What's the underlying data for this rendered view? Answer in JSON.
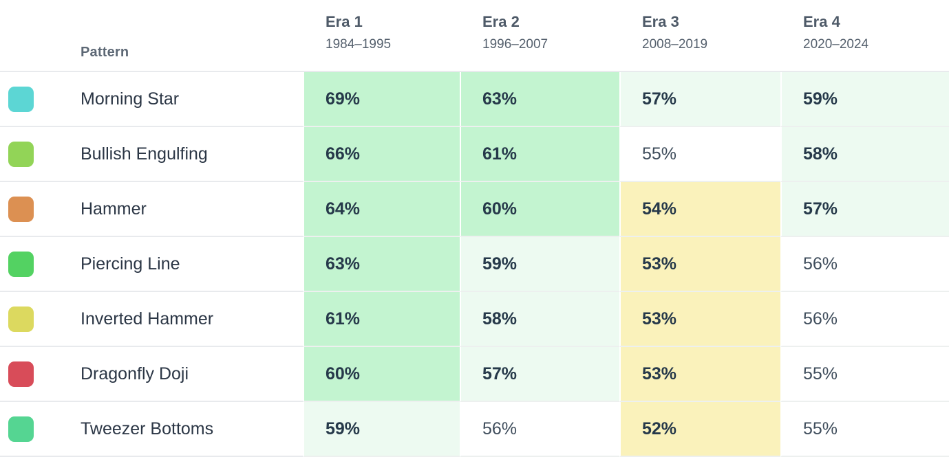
{
  "table": {
    "pattern_header": "Pattern",
    "columns": [
      {
        "era": "Era 1",
        "range": "1984–1995"
      },
      {
        "era": "Era 2",
        "range": "1996–2007"
      },
      {
        "era": "Era 3",
        "range": "2008–2019"
      },
      {
        "era": "Era 4",
        "range": "2020–2024"
      }
    ],
    "rows": [
      {
        "pattern": "Morning Star",
        "swatch_color": "#5cd6d4",
        "cells": [
          {
            "value": "69%",
            "bg": "green",
            "bold": true
          },
          {
            "value": "63%",
            "bg": "green",
            "bold": true
          },
          {
            "value": "57%",
            "bg": "pale",
            "bold": true
          },
          {
            "value": "59%",
            "bg": "pale",
            "bold": true
          }
        ]
      },
      {
        "pattern": "Bullish Engulfing",
        "swatch_color": "#92d457",
        "cells": [
          {
            "value": "66%",
            "bg": "green",
            "bold": true
          },
          {
            "value": "61%",
            "bg": "green",
            "bold": true
          },
          {
            "value": "55%",
            "bg": "white",
            "bold": false
          },
          {
            "value": "58%",
            "bg": "pale",
            "bold": true
          }
        ]
      },
      {
        "pattern": "Hammer",
        "swatch_color": "#dc9052",
        "cells": [
          {
            "value": "64%",
            "bg": "green",
            "bold": true
          },
          {
            "value": "60%",
            "bg": "green",
            "bold": true
          },
          {
            "value": "54%",
            "bg": "yellow",
            "bold": true
          },
          {
            "value": "57%",
            "bg": "pale",
            "bold": true
          }
        ]
      },
      {
        "pattern": "Piercing Line",
        "swatch_color": "#53d262",
        "cells": [
          {
            "value": "63%",
            "bg": "green",
            "bold": true
          },
          {
            "value": "59%",
            "bg": "pale",
            "bold": true
          },
          {
            "value": "53%",
            "bg": "yellow",
            "bold": true
          },
          {
            "value": "56%",
            "bg": "white",
            "bold": false
          }
        ]
      },
      {
        "pattern": "Inverted Hammer",
        "swatch_color": "#dcd95f",
        "cells": [
          {
            "value": "61%",
            "bg": "green",
            "bold": true
          },
          {
            "value": "58%",
            "bg": "pale",
            "bold": true
          },
          {
            "value": "53%",
            "bg": "yellow",
            "bold": true
          },
          {
            "value": "56%",
            "bg": "white",
            "bold": false
          }
        ]
      },
      {
        "pattern": "Dragonfly Doji",
        "swatch_color": "#d84c59",
        "cells": [
          {
            "value": "60%",
            "bg": "green",
            "bold": true
          },
          {
            "value": "57%",
            "bg": "pale",
            "bold": true
          },
          {
            "value": "53%",
            "bg": "yellow",
            "bold": true
          },
          {
            "value": "55%",
            "bg": "white",
            "bold": false
          }
        ]
      },
      {
        "pattern": "Tweezer Bottoms",
        "swatch_color": "#55d592",
        "cells": [
          {
            "value": "59%",
            "bg": "pale",
            "bold": true
          },
          {
            "value": "56%",
            "bg": "white",
            "bold": false
          },
          {
            "value": "52%",
            "bg": "yellow",
            "bold": true
          },
          {
            "value": "55%",
            "bg": "white",
            "bold": false
          }
        ]
      }
    ]
  },
  "colors": {
    "green": "#c3f4d0",
    "pale": "#edfaf1",
    "yellow": "#faf2bb",
    "white": "#ffffff"
  },
  "chart_data": {
    "type": "heatmap",
    "title": "",
    "row_label_header": "Pattern",
    "categories": [
      "Era 1 (1984–1995)",
      "Era 2 (1996–2007)",
      "Era 3 (2008–2019)",
      "Era 4 (2020–2024)"
    ],
    "rows": [
      "Morning Star",
      "Bullish Engulfing",
      "Hammer",
      "Piercing Line",
      "Inverted Hammer",
      "Dragonfly Doji",
      "Tweezer Bottoms"
    ],
    "values_percent": [
      [
        69,
        63,
        57,
        59
      ],
      [
        66,
        61,
        55,
        58
      ],
      [
        64,
        60,
        54,
        57
      ],
      [
        63,
        59,
        53,
        56
      ],
      [
        61,
        58,
        53,
        56
      ],
      [
        60,
        57,
        53,
        55
      ],
      [
        59,
        56,
        52,
        55
      ]
    ],
    "cell_shading": [
      [
        "green",
        "green",
        "pale",
        "pale"
      ],
      [
        "green",
        "green",
        "white",
        "pale"
      ],
      [
        "green",
        "green",
        "yellow",
        "pale"
      ],
      [
        "green",
        "pale",
        "yellow",
        "white"
      ],
      [
        "green",
        "pale",
        "yellow",
        "white"
      ],
      [
        "green",
        "pale",
        "yellow",
        "white"
      ],
      [
        "pale",
        "white",
        "yellow",
        "white"
      ]
    ],
    "legend_position": "none",
    "grid": true
  }
}
